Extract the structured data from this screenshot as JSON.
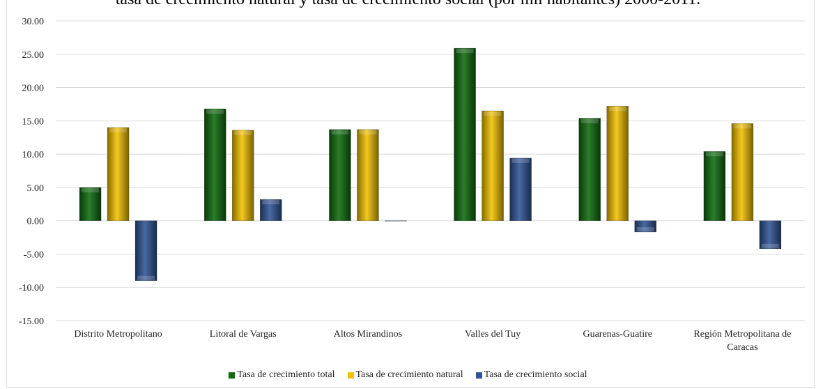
{
  "title": "tasa de crecimiento natural y tasa de crecimiento social (por mil habitantes) 2000-2011.",
  "chart_data": {
    "type": "bar",
    "categories": [
      [
        "Distrito Metropolitano"
      ],
      [
        "Litoral de Vargas"
      ],
      [
        "Altos Mirandinos"
      ],
      [
        "Valles del Tuy"
      ],
      [
        "Guarenas-Guatire"
      ],
      [
        "Región Metropolitana de",
        "Caracas"
      ]
    ],
    "series": [
      {
        "name": "Tasa de crecimiento total",
        "values": [
          5.0,
          16.8,
          13.7,
          25.9,
          15.4,
          10.4
        ],
        "color": "#0e6b0e"
      },
      {
        "name": "Tasa de crecimiento natural",
        "values": [
          14.0,
          13.6,
          13.7,
          16.5,
          17.2,
          14.6
        ],
        "color": "#f2c200"
      },
      {
        "name": "Tasa de crecimiento social",
        "values": [
          -9.0,
          3.2,
          0.0,
          9.4,
          -1.7,
          -4.2
        ],
        "color": "#2f5597"
      }
    ],
    "yticks": [
      "30.00",
      "25.00",
      "20.00",
      "15.00",
      "10.00",
      "5.00",
      "0.00",
      "-5.00",
      "-10.00",
      "-15.00"
    ],
    "ylim": [
      -15,
      30
    ],
    "grid": true,
    "legend_position": "bottom"
  }
}
